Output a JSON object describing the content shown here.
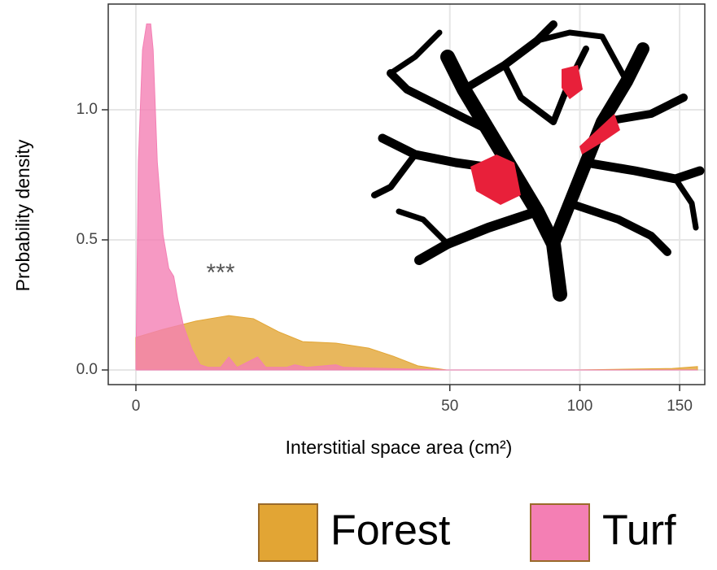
{
  "chart_data": {
    "type": "density",
    "x_label": "Interstitial space area (cm²)",
    "y_label": "Probability density",
    "annotation": "***",
    "x_scale": "sqrt",
    "xlim": [
      0,
      160
    ],
    "ylim": [
      0,
      1.4
    ],
    "xticks": [
      0,
      50,
      100,
      150
    ],
    "yticks": [
      {
        "value": 0,
        "label": "0.0"
      },
      0.5,
      {
        "value": 1,
        "label": "1.0"
      }
    ],
    "grid": true,
    "legend": "bottom",
    "series": [
      {
        "name": "Forest",
        "color": "#e2a534",
        "x": [
          0,
          0.37,
          1.83,
          4.38,
          7.01,
          10.3,
          14.1,
          20.3,
          27.5,
          33.6,
          40.3,
          49,
          97.5,
          146,
          160
        ],
        "values": [
          0.125,
          0.156,
          0.188,
          0.209,
          0.197,
          0.147,
          0.109,
          0.103,
          0.084,
          0.053,
          0.016,
          0,
          0,
          0.006,
          0.013
        ]
      },
      {
        "name": "Turf",
        "color": "#f47fb4",
        "x": [
          0,
          0.003,
          0.022,
          0.058,
          0.111,
          0.151,
          0.232,
          0.373,
          0.549,
          0.725,
          0.892,
          1.15,
          1.59,
          2.09,
          2.66,
          3.64,
          4.38,
          5.19,
          7.51,
          8.56,
          11.5,
          12.8,
          14.8,
          20.3,
          21.9,
          49,
          160
        ],
        "values": [
          0,
          0.8,
          1.23,
          1.33,
          1.33,
          1.23,
          0.8,
          0.52,
          0.39,
          0.36,
          0.27,
          0.17,
          0.08,
          0.02,
          0.01,
          0.01,
          0.05,
          0.01,
          0.05,
          0.01,
          0.01,
          0.02,
          0.01,
          0.02,
          0.01,
          0,
          0
        ]
      }
    ]
  }
}
